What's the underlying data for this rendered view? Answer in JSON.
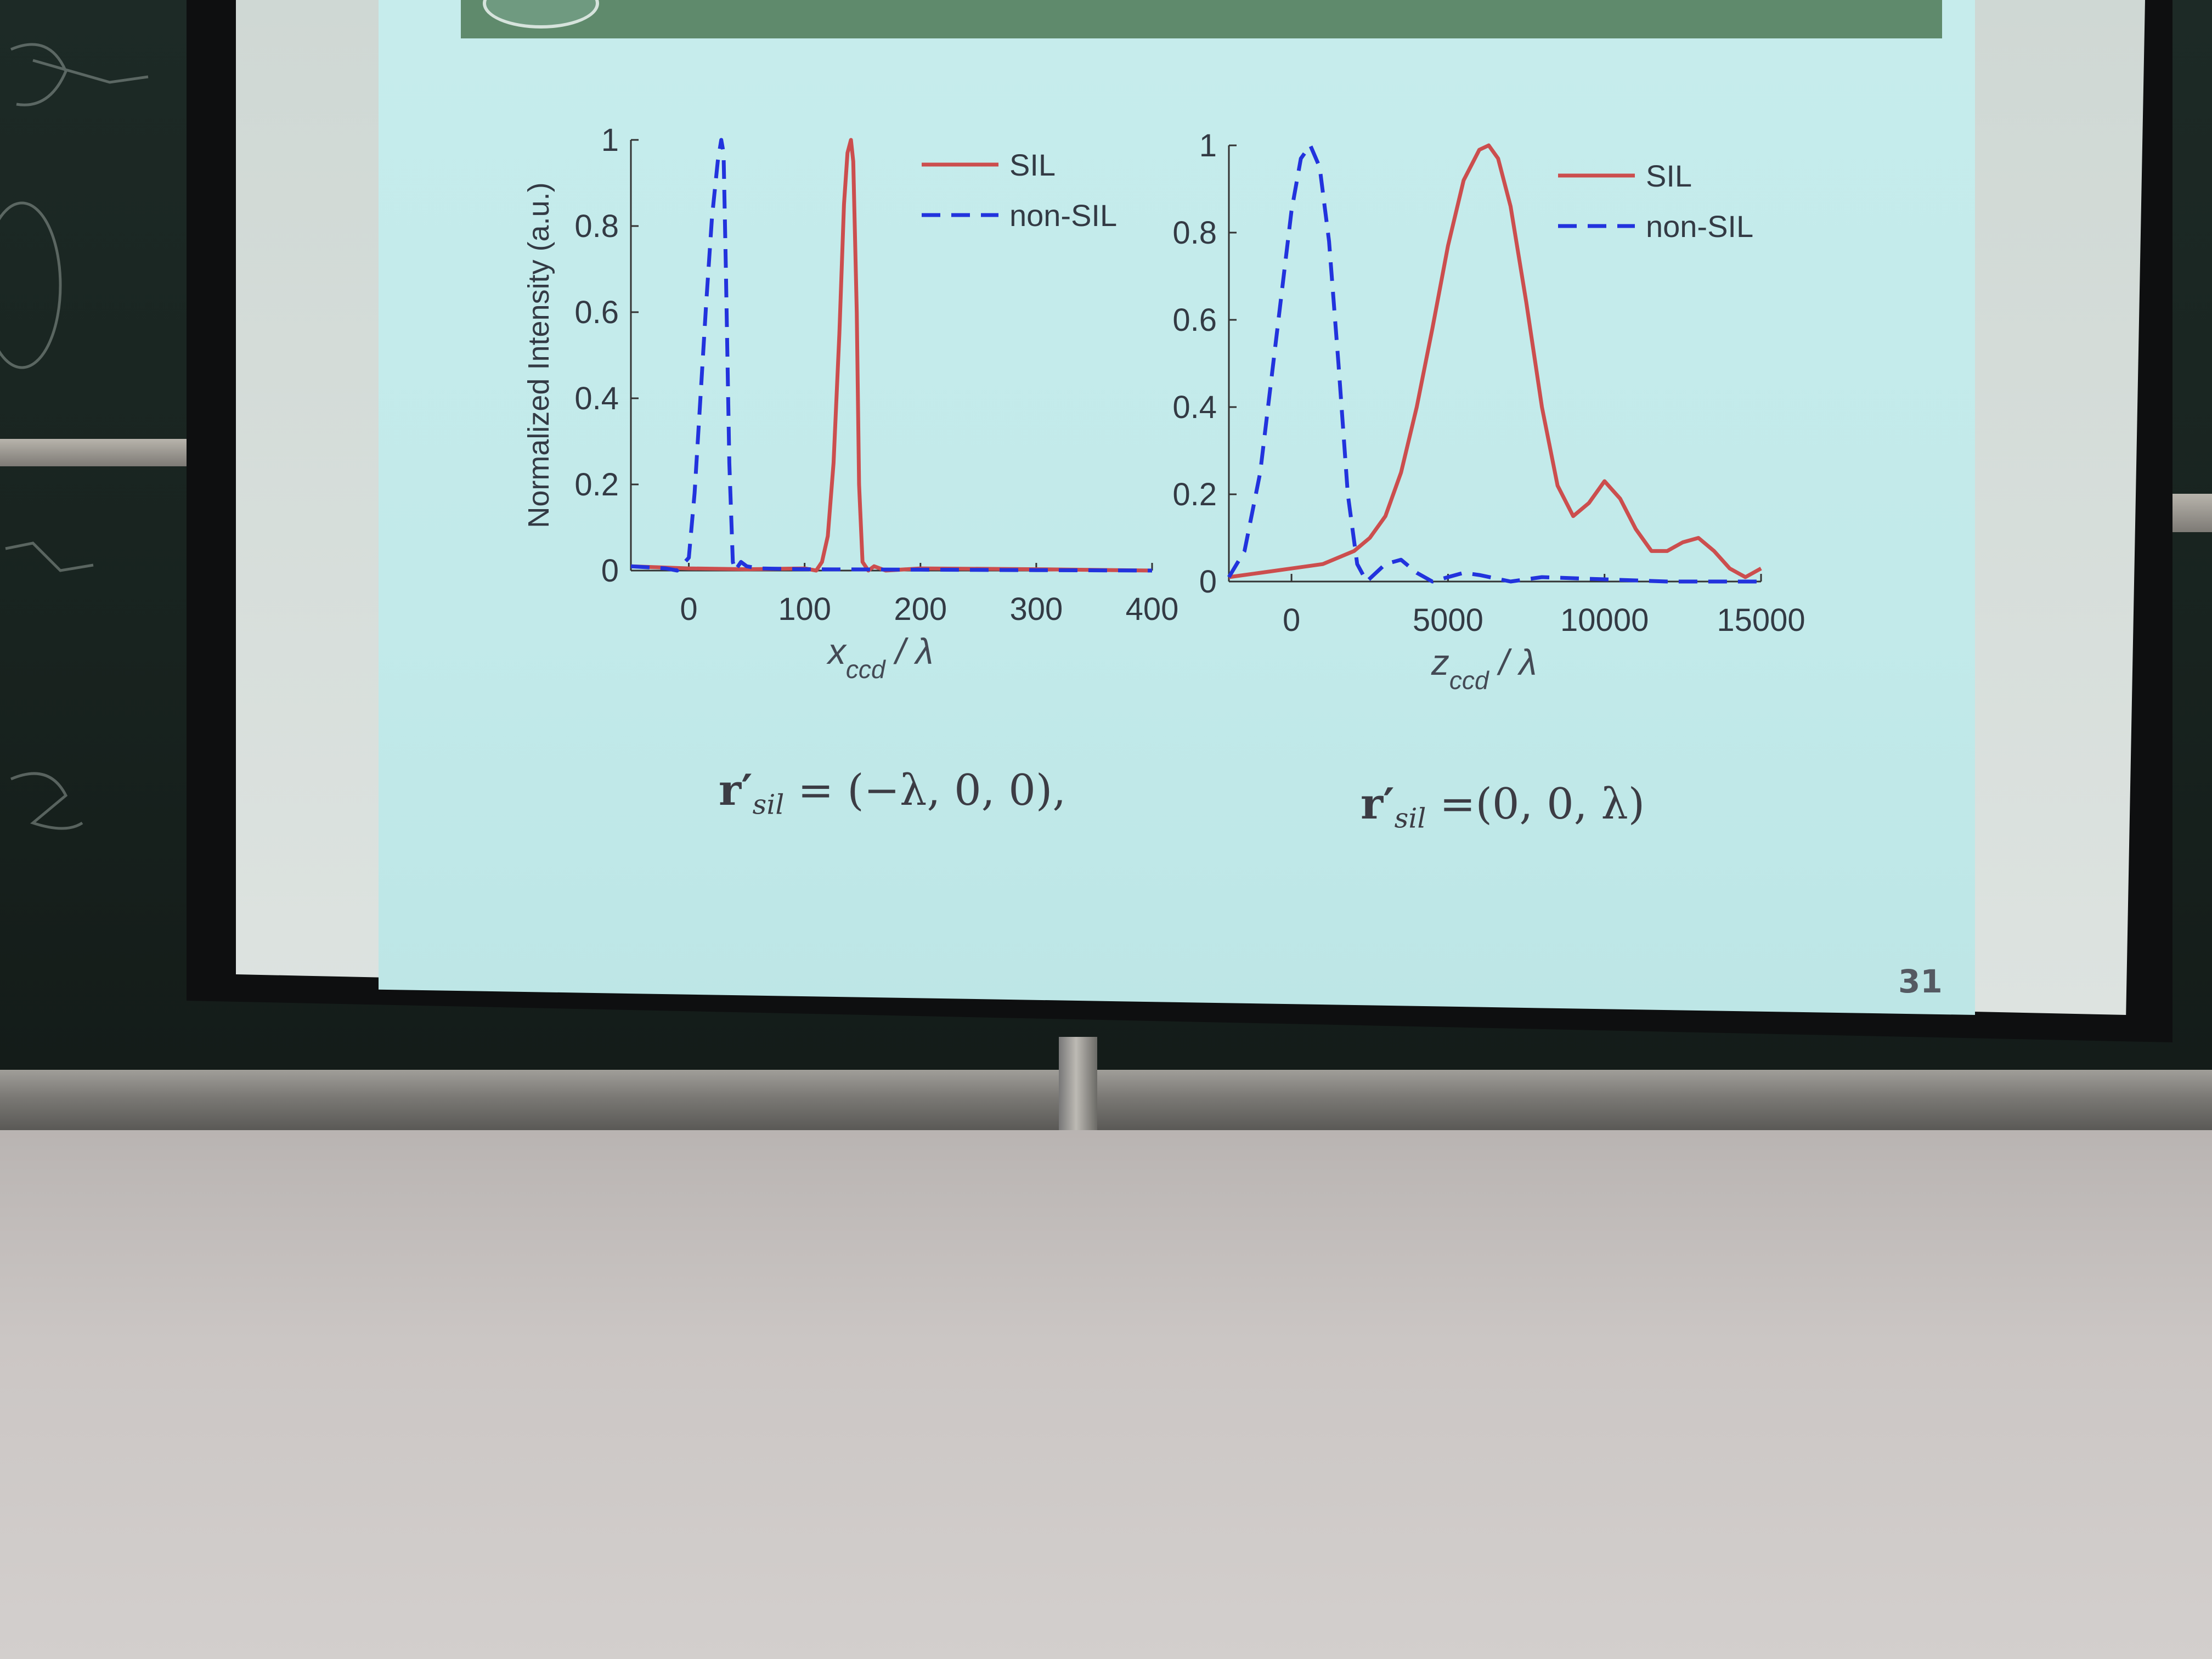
{
  "slide": {
    "page_number": "31",
    "formula_left": {
      "symbol": "r′",
      "subscript": "sil",
      "rhs": "= (−λ, 0, 0),"
    },
    "formula_right": {
      "symbol": "r′",
      "subscript": "sil",
      "rhs": "=(0, 0, λ)"
    }
  },
  "colors": {
    "SIL": "#cc4e4e",
    "non-SIL": "#2233dd"
  },
  "chart_data": [
    {
      "type": "line",
      "title": "",
      "xlabel": "x_ccd / λ",
      "ylabel": "Normalized Intensity (a.u.)",
      "xlim": [
        -50,
        400
      ],
      "ylim": [
        0,
        1
      ],
      "xticks": [
        "0",
        "100",
        "200",
        "300",
        "400"
      ],
      "xtick_values": [
        0,
        100,
        200,
        300,
        400
      ],
      "yticks": [
        "0",
        "0.2",
        "0.4",
        "0.6",
        "0.8",
        "1"
      ],
      "ytick_values": [
        0,
        0.2,
        0.4,
        0.6,
        0.8,
        1
      ],
      "legend_position": "top-right",
      "series": [
        {
          "name": "SIL",
          "style": "solid",
          "x": [
            -50,
            0,
            50,
            100,
            110,
            115,
            120,
            125,
            130,
            134,
            137,
            140,
            142,
            145,
            147,
            150,
            155,
            160,
            170,
            200,
            300,
            400
          ],
          "y": [
            0.01,
            0.005,
            0.003,
            0.005,
            0.0,
            0.02,
            0.08,
            0.25,
            0.55,
            0.85,
            0.97,
            1.0,
            0.95,
            0.6,
            0.2,
            0.02,
            0.0,
            0.01,
            0.0,
            0.005,
            0.003,
            0.0
          ]
        },
        {
          "name": "non-SIL",
          "style": "dashed",
          "x": [
            -50,
            -20,
            -10,
            0,
            5,
            10,
            15,
            20,
            25,
            28,
            30,
            32,
            35,
            38,
            40,
            45,
            50,
            60,
            100,
            200,
            300,
            400
          ],
          "y": [
            0.01,
            0.005,
            0.0,
            0.03,
            0.18,
            0.4,
            0.62,
            0.82,
            0.95,
            1.0,
            0.97,
            0.7,
            0.25,
            0.02,
            0.0,
            0.02,
            0.01,
            0.005,
            0.003,
            0.002,
            0.001,
            0.0
          ]
        }
      ]
    },
    {
      "type": "line",
      "title": "",
      "xlabel": "z_ccd / λ",
      "ylabel": "",
      "xlim": [
        -2000,
        15000
      ],
      "ylim": [
        0,
        1
      ],
      "xticks": [
        "0",
        "5000",
        "10000",
        "15000"
      ],
      "xtick_values": [
        0,
        5000,
        10000,
        15000
      ],
      "yticks": [
        "0",
        "0.2",
        "0.4",
        "0.6",
        "0.8",
        "1"
      ],
      "ytick_values": [
        0,
        0.2,
        0.4,
        0.6,
        0.8,
        1
      ],
      "legend_position": "top-right",
      "series": [
        {
          "name": "SIL",
          "style": "solid",
          "x": [
            -2000,
            -1000,
            0,
            1000,
            2000,
            2500,
            3000,
            3500,
            4000,
            4500,
            5000,
            5500,
            6000,
            6300,
            6600,
            7000,
            7500,
            8000,
            8500,
            9000,
            9500,
            10000,
            10500,
            11000,
            11500,
            12000,
            12500,
            13000,
            13500,
            14000,
            14500,
            15000
          ],
          "y": [
            0.01,
            0.02,
            0.03,
            0.04,
            0.07,
            0.1,
            0.15,
            0.25,
            0.4,
            0.58,
            0.77,
            0.92,
            0.99,
            1.0,
            0.97,
            0.86,
            0.64,
            0.4,
            0.22,
            0.15,
            0.18,
            0.23,
            0.19,
            0.12,
            0.07,
            0.07,
            0.09,
            0.1,
            0.07,
            0.03,
            0.01,
            0.03
          ]
        },
        {
          "name": "non-SIL",
          "style": "dashed",
          "x": [
            -2000,
            -1500,
            -1000,
            -500,
            0,
            300,
            600,
            900,
            1200,
            1500,
            1800,
            2100,
            2400,
            2700,
            3000,
            3500,
            4000,
            4500,
            5000,
            5500,
            6000,
            7000,
            8000,
            10000,
            12000,
            15000
          ],
          "y": [
            0.01,
            0.07,
            0.25,
            0.55,
            0.85,
            0.97,
            1.0,
            0.95,
            0.78,
            0.5,
            0.2,
            0.04,
            0.0,
            0.02,
            0.04,
            0.05,
            0.02,
            0.0,
            0.01,
            0.02,
            0.015,
            0.0,
            0.01,
            0.005,
            0.0,
            0.0
          ]
        }
      ]
    }
  ]
}
